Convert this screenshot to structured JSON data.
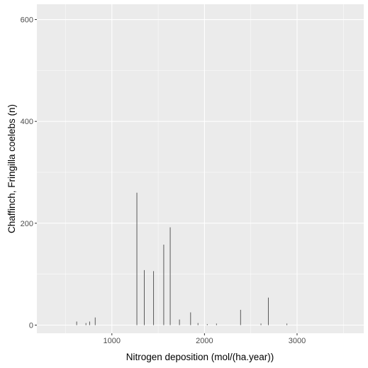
{
  "chart_data": {
    "type": "bar",
    "xlabel": "Nitrogen deposition (mol/(ha.year))",
    "ylabel": "Chaffinch, Fringilla coelebs (n)",
    "xlim": [
      190,
      3720
    ],
    "ylim": [
      -16,
      630
    ],
    "x_ticks": [
      1000,
      2000,
      3000
    ],
    "x_tick_labels": [
      "1000",
      "2000",
      "3000"
    ],
    "y_ticks": [
      0,
      200,
      400,
      600
    ],
    "y_tick_labels": [
      "0",
      "200",
      "400",
      "600"
    ],
    "grid": true,
    "legend": "none",
    "colors": {
      "panel": "#EBEBEB",
      "grid": "#FFFFFF",
      "bar": "#595959"
    },
    "x": [
      620,
      720,
      760,
      820,
      1270,
      1350,
      1450,
      1560,
      1630,
      1730,
      1850,
      1930,
      2030,
      2130,
      2390,
      2610,
      2690,
      2890
    ],
    "values": [
      7,
      4,
      7,
      15,
      260,
      108,
      106,
      158,
      192,
      11,
      25,
      4,
      2,
      3,
      30,
      3,
      54,
      3
    ]
  }
}
